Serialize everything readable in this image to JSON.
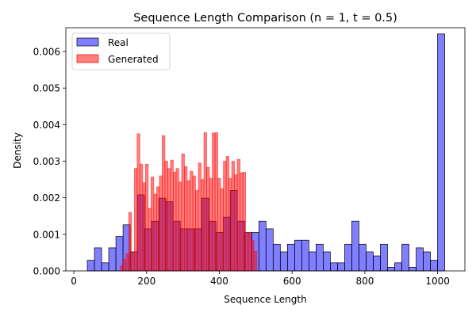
{
  "chart_data": {
    "type": "bar",
    "title": "Sequence Length Comparison (n = 1, t = 0.5)",
    "xlabel": "Sequence Length",
    "ylabel": "Density",
    "xlim": [
      -22,
      1075
    ],
    "ylim": [
      0,
      0.00665
    ],
    "xticks": [
      0,
      200,
      400,
      600,
      800,
      1000
    ],
    "yticks": [
      0.0,
      0.001,
      0.002,
      0.003,
      0.004,
      0.005,
      0.006
    ],
    "ytick_format": "0.000",
    "grid": false,
    "legend": {
      "position": "top-left",
      "entries": [
        "Real",
        "Generated"
      ]
    },
    "series": [
      {
        "name": "Real",
        "color": "#0000ff",
        "fill_opacity": 0.5,
        "edgecolor": "#000000",
        "bin_start": 37,
        "bin_width": 19.65,
        "values": [
          0.00029,
          0.00063,
          0.00022,
          0.00063,
          0.00094,
          0.00126,
          0.00052,
          0.00208,
          0.00115,
          0.00136,
          0.00199,
          0.00189,
          0.00136,
          0.00115,
          0.00115,
          0.00115,
          0.00199,
          0.00136,
          0.00105,
          0.00147,
          0.0022,
          0.00136,
          0.00105,
          0.00105,
          0.00136,
          0.00115,
          0.00073,
          0.00052,
          0.00073,
          0.00084,
          0.00084,
          0.00052,
          0.00073,
          0.00052,
          0.00022,
          0.00022,
          0.00073,
          0.00136,
          0.00073,
          0.00052,
          0.00041,
          0.00073,
          0.0001,
          0.00022,
          0.00073,
          0.0001,
          0.00063,
          0.00052,
          0.00029,
          0.00648
        ]
      },
      {
        "name": "Generated",
        "color": "#ff0000",
        "fill_opacity": 0.5,
        "edgecolor": "#ff0000",
        "bin_start": 128,
        "bin_width": 7.65,
        "values": [
          0.00014,
          0.00031,
          0.00047,
          0.0016,
          0.00051,
          0.0028,
          0.00375,
          0.00292,
          0.00241,
          0.00292,
          0.00171,
          0.00257,
          0.0021,
          0.0023,
          0.0026,
          0.0037,
          0.003,
          0.0028,
          0.00303,
          0.0027,
          0.0028,
          0.00243,
          0.0032,
          0.00285,
          0.00247,
          0.00272,
          0.0026,
          0.0022,
          0.00295,
          0.0025,
          0.00378,
          0.00283,
          0.00253,
          0.00377,
          0.00378,
          0.00253,
          0.00225,
          0.003,
          0.00313,
          0.00253,
          0.003,
          0.00263,
          0.00305,
          0.00268,
          0.0027,
          0.00105,
          0.00105,
          0.00083,
          0.00053
        ]
      }
    ]
  }
}
